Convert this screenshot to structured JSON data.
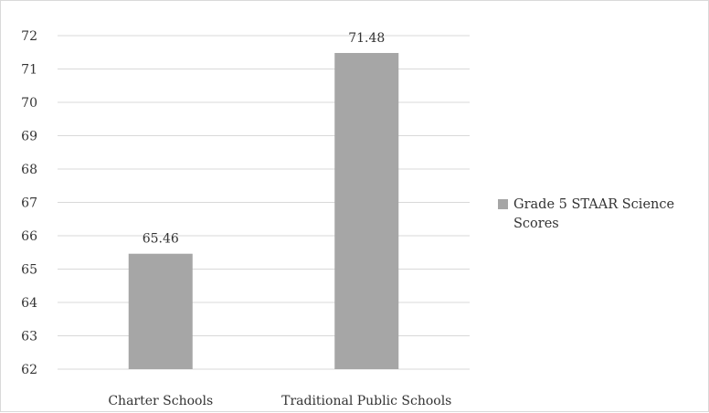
{
  "chart_data": {
    "type": "bar",
    "categories": [
      "Charter Schools",
      "Traditional Public Schools"
    ],
    "series": [
      {
        "name": "Grade 5 STAAR Science Scores",
        "values": [
          65.46,
          71.48
        ],
        "color": "#a6a6a6"
      }
    ],
    "value_labels": [
      "65.46",
      "71.48"
    ],
    "yticks": [
      "62",
      "63",
      "64",
      "65",
      "66",
      "67",
      "68",
      "69",
      "70",
      "71",
      "72"
    ],
    "ylim": [
      62,
      72
    ],
    "grid": true,
    "legend_position": "right"
  }
}
